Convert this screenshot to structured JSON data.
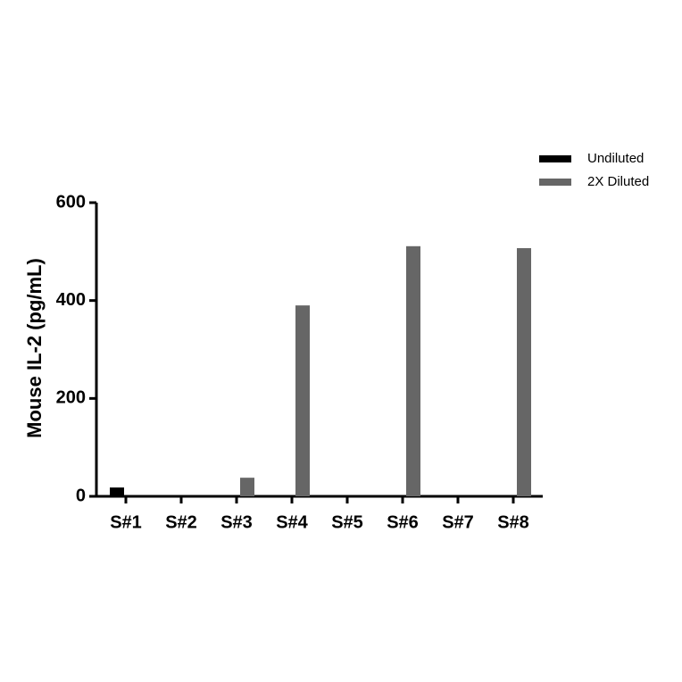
{
  "chart_data": {
    "type": "bar",
    "y_label": "Mouse IL-2 (pg/mL)",
    "categories": [
      "S#1",
      "S#2",
      "S#3",
      "S#4",
      "S#5",
      "S#6",
      "S#7",
      "S#8"
    ],
    "series": [
      {
        "name": "Undiluted",
        "color": "#000000",
        "values": [
          18,
          0,
          0,
          0,
          0,
          0,
          0,
          0
        ]
      },
      {
        "name": "2X Diluted",
        "color": "#666666",
        "values": [
          0,
          0,
          38,
          390,
          0,
          511,
          0,
          507
        ]
      }
    ],
    "ylim": [
      0,
      600
    ],
    "yticks": [
      0,
      200,
      400,
      600
    ],
    "legend": "top-right"
  }
}
